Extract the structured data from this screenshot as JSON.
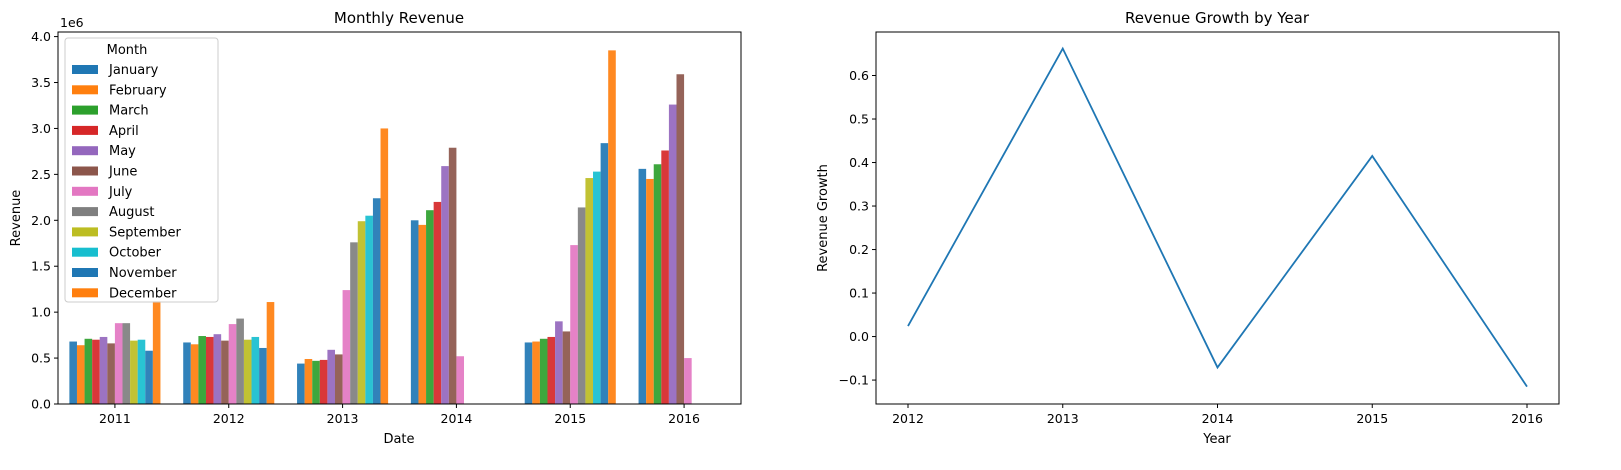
{
  "colors": [
    "#1f77b4",
    "#ff7f0e",
    "#2ca02c",
    "#d62728",
    "#9467bd",
    "#8c564b",
    "#e377c2",
    "#7f7f7f",
    "#bcbd22",
    "#17becf",
    "#1f77b4",
    "#ff7f0e"
  ],
  "chart_data": [
    {
      "type": "bar",
      "title": "Monthly Revenue",
      "xlabel": "Date",
      "ylabel": "Revenue",
      "y_scale_label": "1e6",
      "categories": [
        "2011",
        "2012",
        "2013",
        "2014",
        "2015",
        "2016"
      ],
      "ylim": [
        0,
        4.05
      ],
      "yticks": [
        "0.0",
        "0.5",
        "1.0",
        "1.5",
        "2.0",
        "2.5",
        "3.0",
        "3.5",
        "4.0"
      ],
      "legend_title": "Month",
      "legend_position": "upper-left",
      "series": [
        {
          "name": "January",
          "values": [
            0.68,
            0.67,
            0.44,
            2.0,
            0.67,
            2.56
          ]
        },
        {
          "name": "February",
          "values": [
            0.64,
            0.65,
            0.49,
            1.95,
            0.68,
            2.45
          ]
        },
        {
          "name": "March",
          "values": [
            0.71,
            0.74,
            0.47,
            2.11,
            0.71,
            2.61
          ]
        },
        {
          "name": "April",
          "values": [
            0.7,
            0.73,
            0.48,
            2.2,
            0.73,
            2.76
          ]
        },
        {
          "name": "May",
          "values": [
            0.73,
            0.76,
            0.59,
            2.59,
            0.9,
            3.26
          ]
        },
        {
          "name": "June",
          "values": [
            0.66,
            0.69,
            0.54,
            2.79,
            0.79,
            3.59
          ]
        },
        {
          "name": "July",
          "values": [
            0.88,
            0.87,
            1.24,
            0.52,
            1.73,
            0.5
          ]
        },
        {
          "name": "August",
          "values": [
            0.88,
            0.93,
            1.76,
            null,
            2.14,
            null
          ]
        },
        {
          "name": "September",
          "values": [
            0.69,
            0.7,
            1.99,
            null,
            2.46,
            null
          ]
        },
        {
          "name": "October",
          "values": [
            0.7,
            0.73,
            2.05,
            null,
            2.53,
            null
          ]
        },
        {
          "name": "November",
          "values": [
            0.58,
            0.61,
            2.24,
            null,
            2.84,
            null
          ]
        },
        {
          "name": "December",
          "values": [
            1.12,
            1.11,
            3.0,
            null,
            3.85,
            null
          ]
        }
      ]
    },
    {
      "type": "line",
      "title": "Revenue Growth by Year",
      "xlabel": "Year",
      "ylabel": "Revenue Growth",
      "x": [
        "2012",
        "2013",
        "2014",
        "2015",
        "2016"
      ],
      "series": [
        {
          "values": [
            0.024,
            0.662,
            -0.071,
            0.415,
            -0.115
          ]
        }
      ],
      "ylim": [
        -0.155,
        0.7
      ],
      "yticks": [
        "−0.1",
        "0.0",
        "0.1",
        "0.2",
        "0.3",
        "0.4",
        "0.5",
        "0.6"
      ],
      "color": "#1f77b4"
    }
  ]
}
